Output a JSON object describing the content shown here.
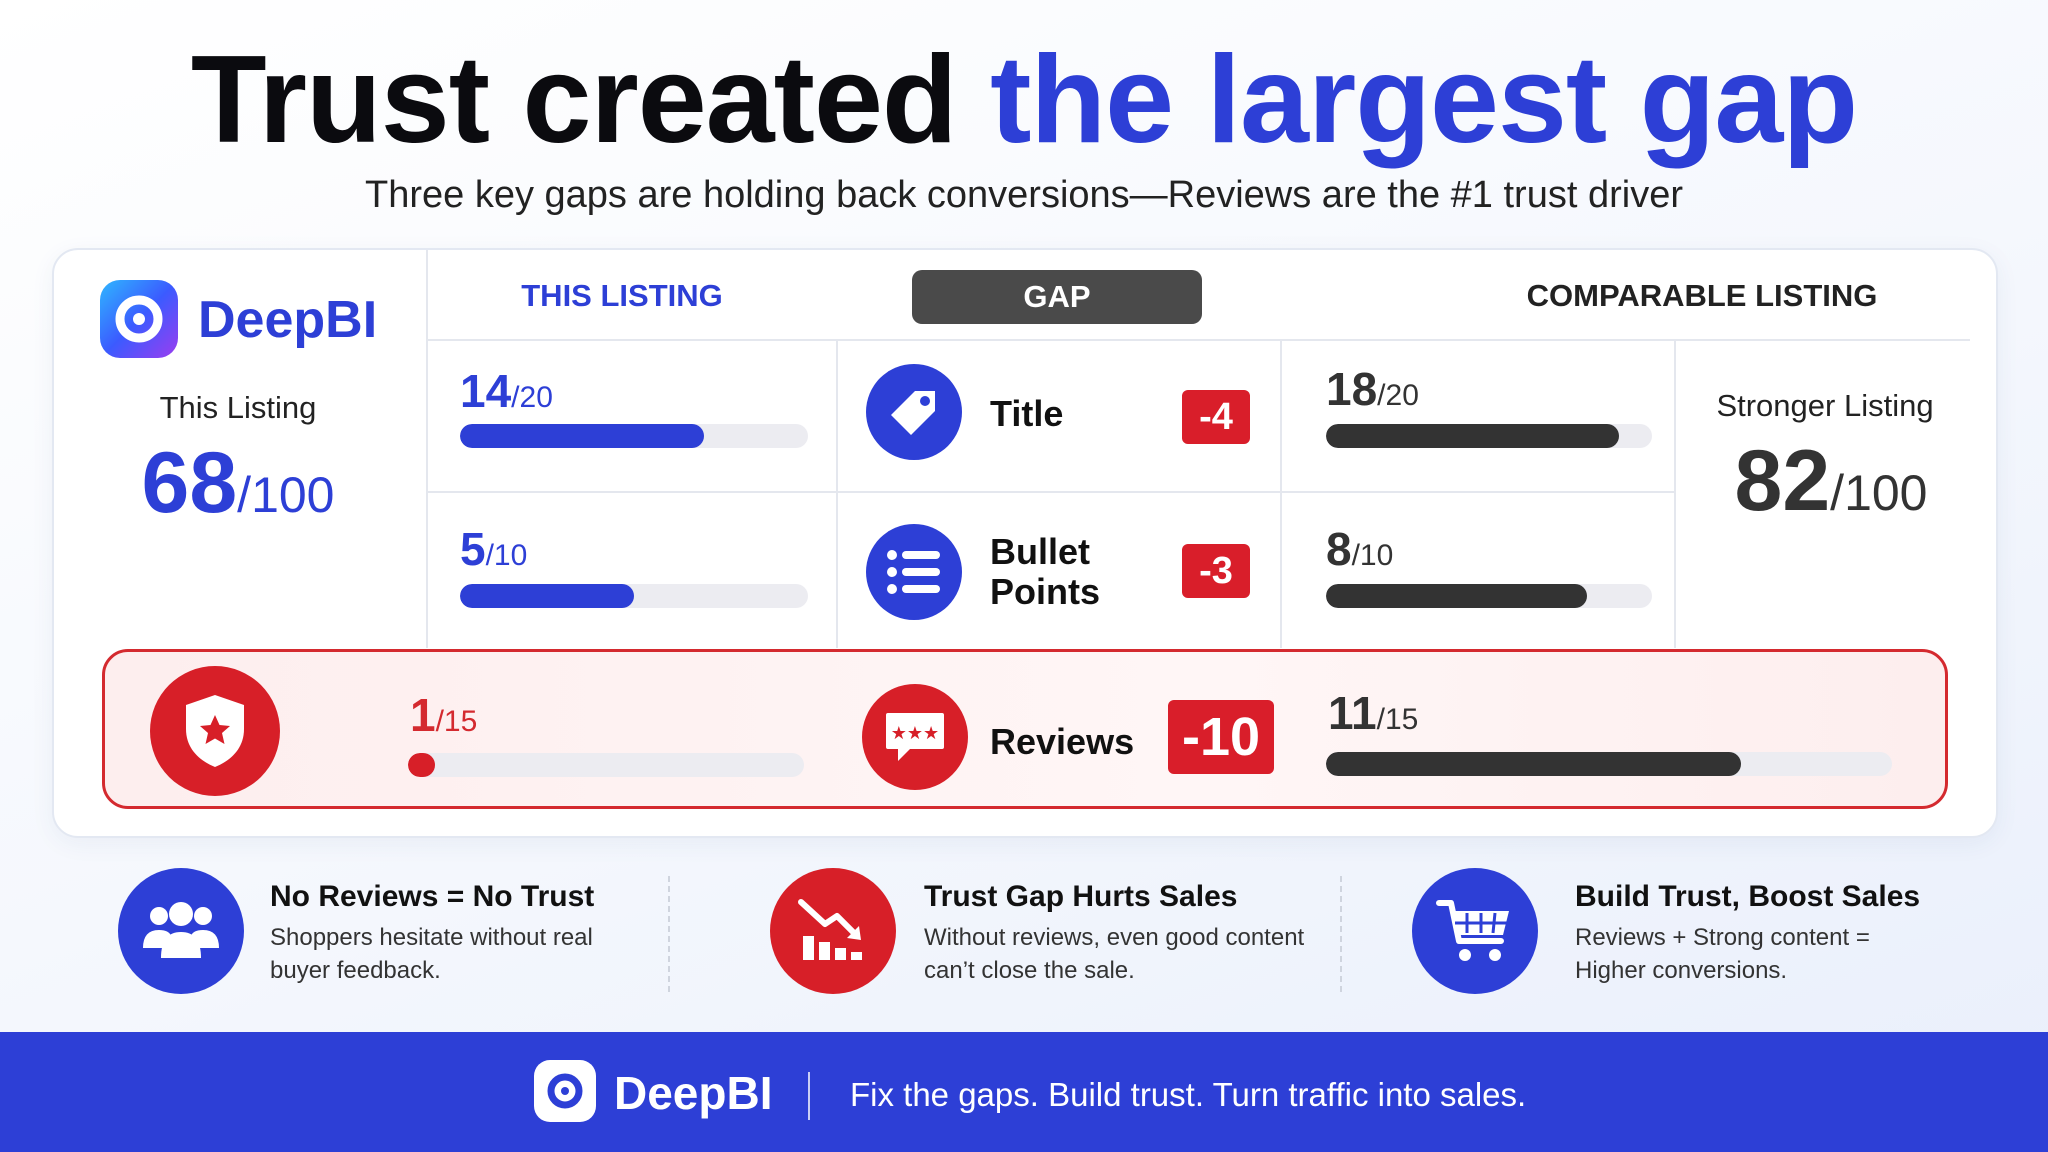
{
  "header": {
    "title_part1": "Trust created",
    "title_part2": "the largest gap",
    "subtitle": "Three key gaps are holding back conversions—Reviews are the #1 trust driver"
  },
  "brand": {
    "name": "DeepBI"
  },
  "this_listing": {
    "label": "This Listing",
    "score": "68",
    "max": "/100"
  },
  "comparable_listing": {
    "label": "Stronger Listing",
    "score": "82",
    "max": "/100"
  },
  "columns": {
    "this_listing": "THIS LISTING",
    "gap": "GAP",
    "comparable": "COMPARABLE LISTING"
  },
  "metrics": [
    {
      "label": "Title",
      "icon": "tag-icon",
      "this_score": "14",
      "this_max": "/20",
      "this_fraction": 0.7,
      "gap": "-4",
      "comp_score": "18",
      "comp_max": "/20",
      "comp_fraction": 0.9
    },
    {
      "label_line1": "Bullet",
      "label_line2": "Points",
      "icon": "list-icon",
      "this_score": "5",
      "this_max": "/10",
      "this_fraction": 0.5,
      "gap": "-3",
      "comp_score": "8",
      "comp_max": "/10",
      "comp_fraction": 0.8
    },
    {
      "label": "Reviews",
      "icon": "chat-stars-icon",
      "side_icon": "shield-star-icon",
      "this_score": "1",
      "this_max": "/15",
      "this_fraction": 0.067,
      "gap": "-10",
      "comp_score": "11",
      "comp_max": "/15",
      "comp_fraction": 0.733
    }
  ],
  "points": [
    {
      "title": "No Reviews = No Trust",
      "desc": "Shoppers hesitate without real buyer feedback.",
      "icon": "users-icon"
    },
    {
      "title": "Trust Gap Hurts Sales",
      "desc": "Without reviews, even good content can’t close the sale.",
      "icon": "chart-down-icon"
    },
    {
      "title": "Build Trust, Boost Sales",
      "desc": "Reviews + Strong content = Higher conversions.",
      "icon": "cart-icon"
    }
  ],
  "footer": {
    "brand": "DeepBI",
    "tagline": "Fix the gaps. Build trust. Turn traffic into sales."
  },
  "colors": {
    "accent_blue": "#2d3fd6",
    "gap_red": "#d91e2a",
    "comparable_dark": "#333333",
    "track_gray": "#ececf1"
  }
}
